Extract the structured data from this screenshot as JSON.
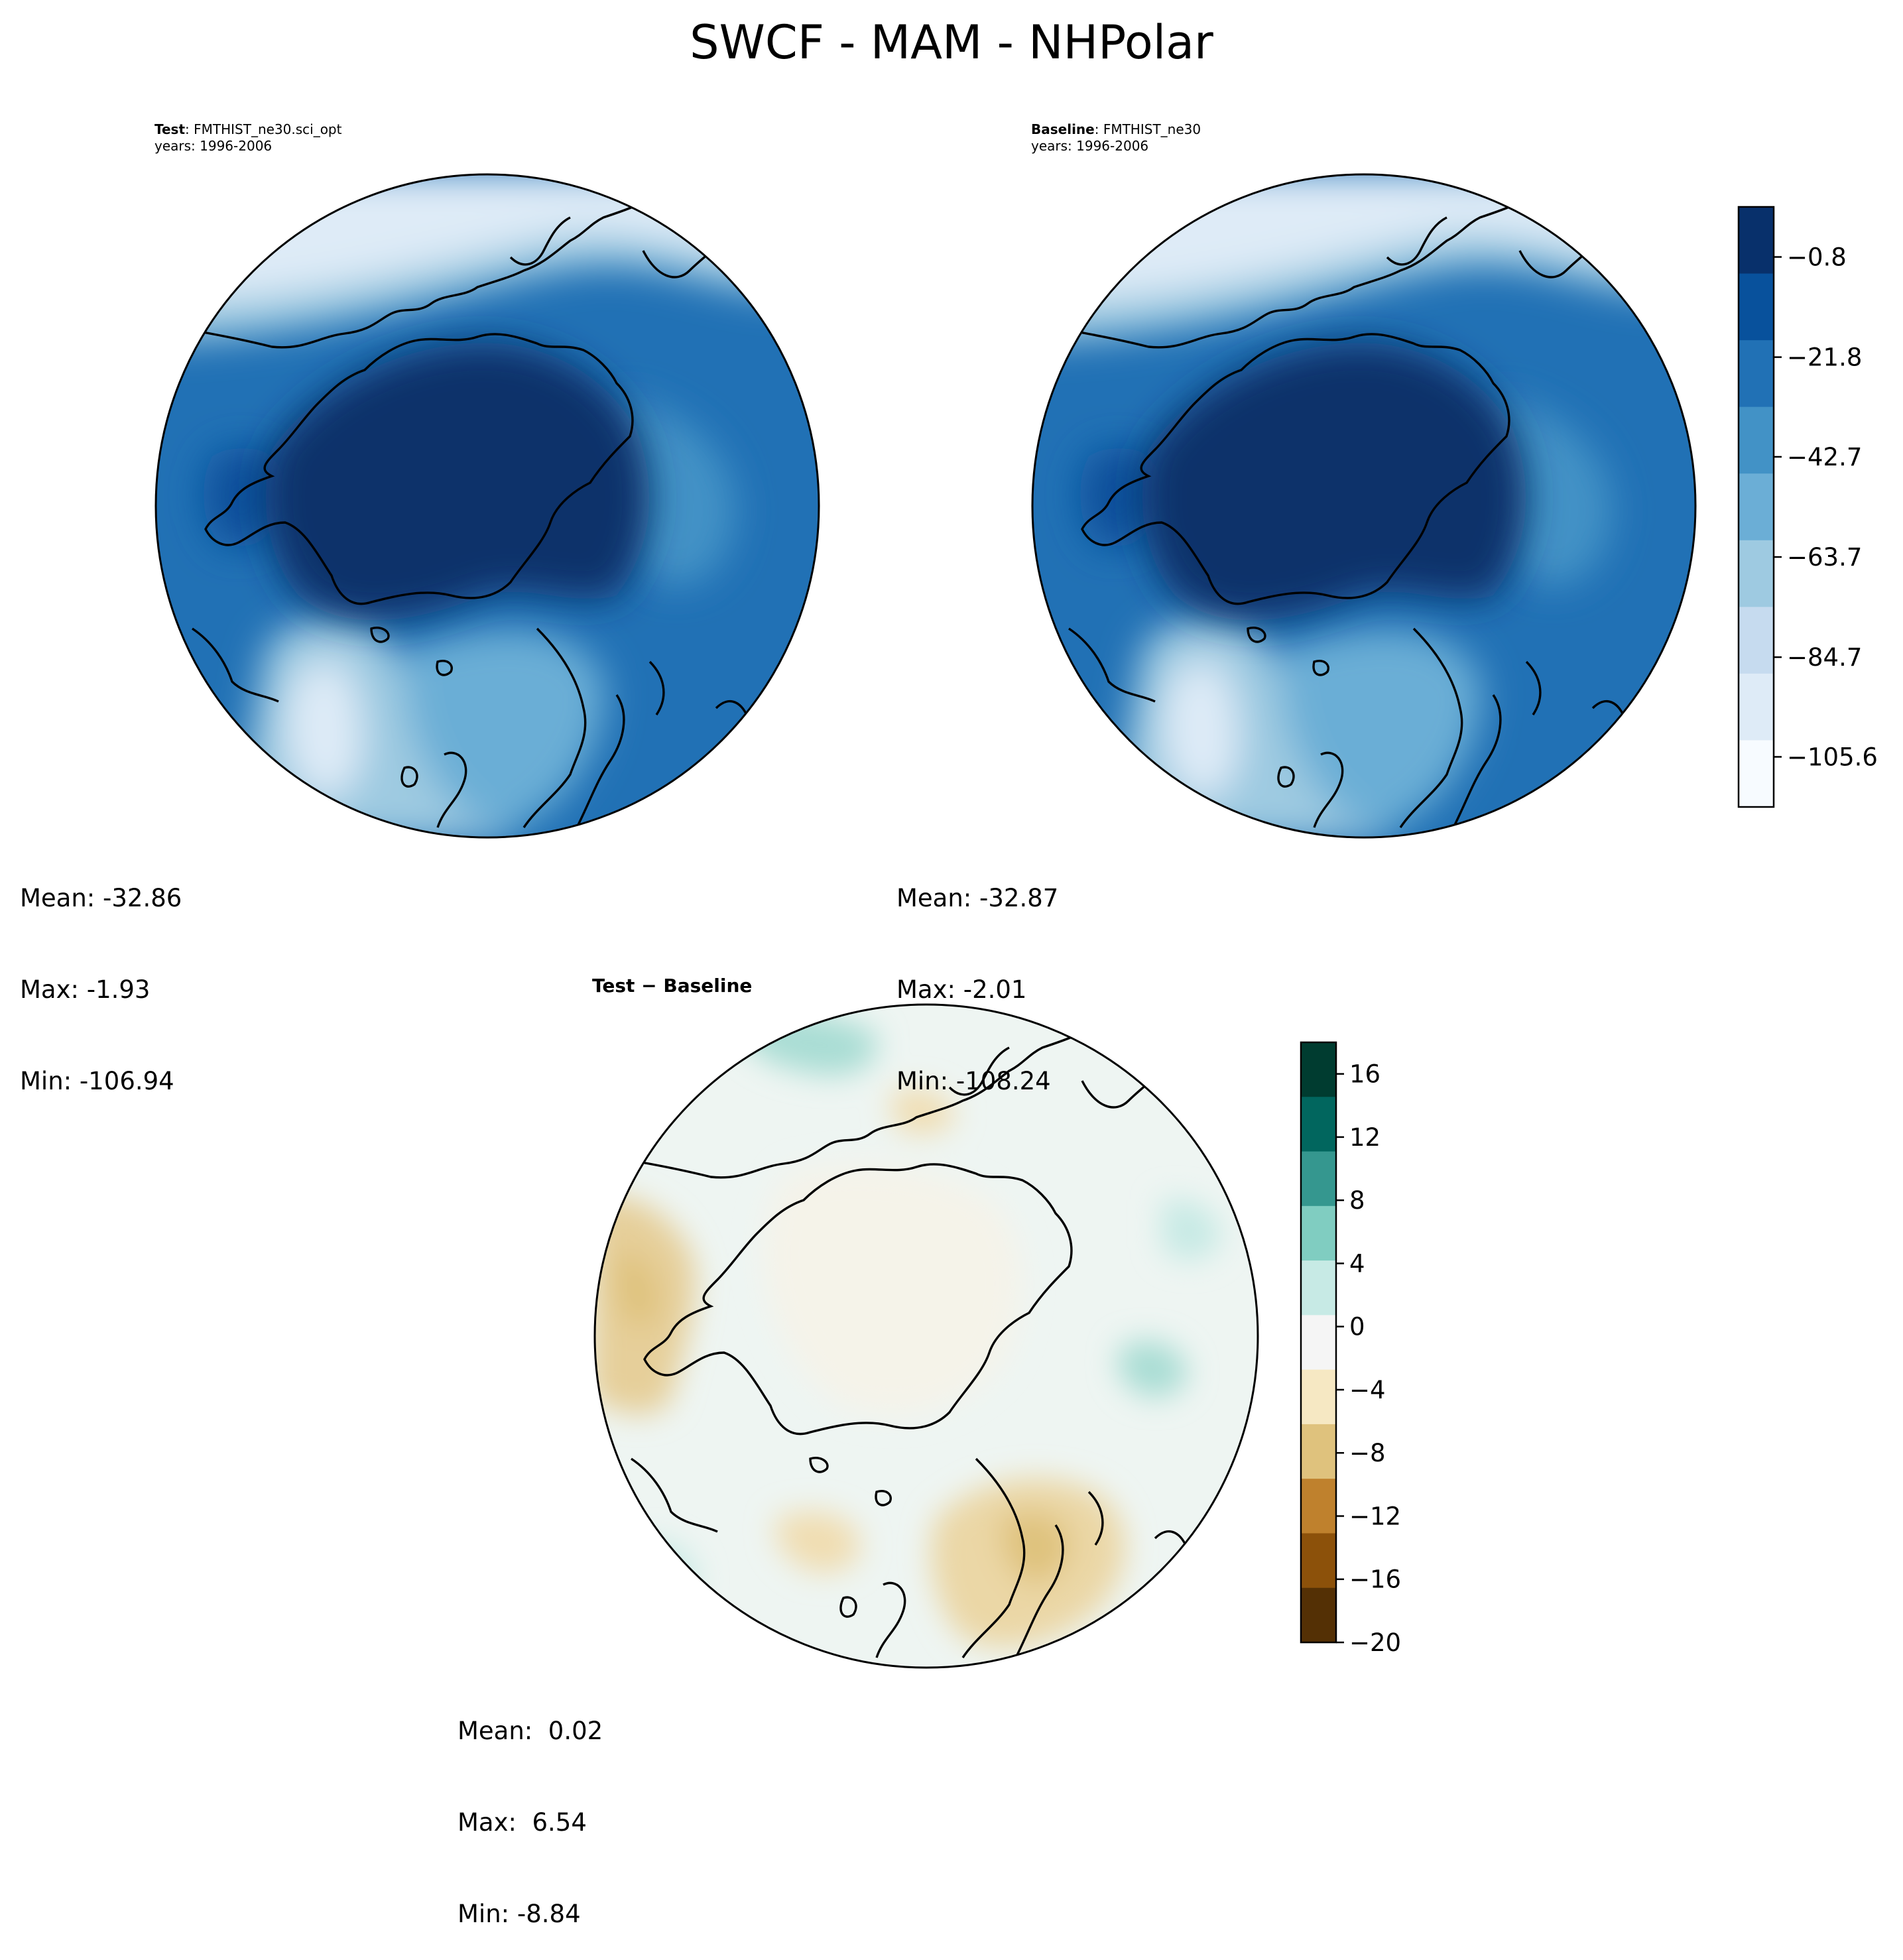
{
  "figure": {
    "title": "SWCF - MAM - NHPolar"
  },
  "panels": {
    "test": {
      "label_bold": "Test",
      "label_rest": ": FMTHIST_ne30.sci_opt",
      "years": "years: 1996-2006",
      "stats": {
        "mean": "Mean: -32.86",
        "max": "Max: -1.93",
        "min": "Min: -106.94"
      }
    },
    "baseline": {
      "label_bold": "Baseline",
      "label_rest": ": FMTHIST_ne30",
      "years": "years: 1996-2006",
      "stats": {
        "mean": "Mean: -32.87",
        "max": "Max: -2.01",
        "min": "Min: -108.24"
      }
    },
    "diff": {
      "title": "Test − Baseline",
      "stats": {
        "mean": "Mean:  0.02",
        "max": "Max:  6.54",
        "min": "Min: -8.84"
      }
    }
  },
  "colorbars": {
    "swcf": {
      "ticks": [
        "−0.8",
        "−21.8",
        "−42.7",
        "−63.7",
        "−84.7",
        "−105.6"
      ],
      "tick_values": [
        -0.8,
        -21.8,
        -42.7,
        -63.7,
        -84.7,
        -105.6
      ],
      "range": [
        -116.1,
        9.7
      ],
      "colors": [
        "#08306b",
        "#08519c",
        "#2171b5",
        "#4292c6",
        "#6baed6",
        "#9ecae1",
        "#c6dbef",
        "#deebf7",
        "#f7fbff"
      ]
    },
    "diff": {
      "ticks": [
        "16",
        "12",
        "8",
        "4",
        "0",
        "−4",
        "−8",
        "−12",
        "−16",
        "−20"
      ],
      "tick_values": [
        16,
        12,
        8,
        4,
        0,
        -4,
        -8,
        -12,
        -16,
        -20
      ],
      "range": [
        -20,
        18
      ],
      "colors": [
        "#003c30",
        "#01665e",
        "#35978f",
        "#80cdc1",
        "#c7eae5",
        "#f5f5f5",
        "#f6e8c3",
        "#dfc27d",
        "#bf812d",
        "#8c510a",
        "#543005"
      ]
    }
  },
  "map": {
    "projection": "North Polar Stereographic",
    "region": "NHPolar"
  }
}
